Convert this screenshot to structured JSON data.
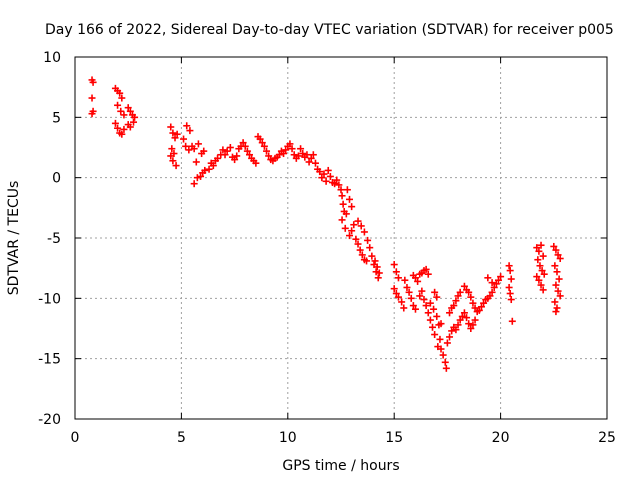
{
  "chart_data": {
    "type": "scatter",
    "title": "Day 166 of 2022, Sidereal Day-to-day VTEC variation (SDTVAR) for receiver p005",
    "xlabel": "GPS time / hours",
    "ylabel": "SDTVAR / TECUs",
    "xlim": [
      0,
      25
    ],
    "ylim": [
      -20,
      10
    ],
    "x_ticks": [
      0,
      5,
      10,
      15,
      20,
      25
    ],
    "y_ticks": [
      -20,
      -15,
      -10,
      -5,
      0,
      5,
      10
    ],
    "grid": true,
    "marker": "plus",
    "color": "#ff0000",
    "series": [
      {
        "name": "SDTVAR",
        "points": [
          [
            0.8,
            8.1
          ],
          [
            0.85,
            7.9
          ],
          [
            0.8,
            6.6
          ],
          [
            0.85,
            5.5
          ],
          [
            0.8,
            5.3
          ],
          [
            1.9,
            7.4
          ],
          [
            2.0,
            7.2
          ],
          [
            2.1,
            7.0
          ],
          [
            2.2,
            6.6
          ],
          [
            2.0,
            6.0
          ],
          [
            2.15,
            5.5
          ],
          [
            2.3,
            5.2
          ],
          [
            1.9,
            4.5
          ],
          [
            2.0,
            4.1
          ],
          [
            2.1,
            3.7
          ],
          [
            2.2,
            3.6
          ],
          [
            2.3,
            4.0
          ],
          [
            2.5,
            5.8
          ],
          [
            2.6,
            5.5
          ],
          [
            2.7,
            5.2
          ],
          [
            2.8,
            5.0
          ],
          [
            2.5,
            4.4
          ],
          [
            2.6,
            4.2
          ],
          [
            2.75,
            4.6
          ],
          [
            4.5,
            4.2
          ],
          [
            4.6,
            3.7
          ],
          [
            4.7,
            3.3
          ],
          [
            4.55,
            2.4
          ],
          [
            4.65,
            2.0
          ],
          [
            4.8,
            3.6
          ],
          [
            4.5,
            1.8
          ],
          [
            4.6,
            1.4
          ],
          [
            4.75,
            1.0
          ],
          [
            5.1,
            3.2
          ],
          [
            5.2,
            2.6
          ],
          [
            5.35,
            2.3
          ],
          [
            5.5,
            2.6
          ],
          [
            5.6,
            2.4
          ],
          [
            5.25,
            4.3
          ],
          [
            5.4,
            3.9
          ],
          [
            5.7,
            1.3
          ],
          [
            5.8,
            2.8
          ],
          [
            5.95,
            2.0
          ],
          [
            6.05,
            2.2
          ],
          [
            5.6,
            -0.5
          ],
          [
            5.75,
            0.0
          ],
          [
            5.9,
            0.1
          ],
          [
            6.0,
            0.4
          ],
          [
            6.1,
            0.6
          ],
          [
            6.3,
            0.7
          ],
          [
            6.4,
            1.2
          ],
          [
            6.5,
            1.0
          ],
          [
            6.6,
            1.4
          ],
          [
            6.7,
            1.6
          ],
          [
            6.85,
            1.9
          ],
          [
            6.95,
            2.3
          ],
          [
            7.05,
            1.9
          ],
          [
            7.15,
            2.2
          ],
          [
            7.3,
            2.5
          ],
          [
            7.4,
            1.7
          ],
          [
            7.5,
            1.5
          ],
          [
            7.6,
            1.8
          ],
          [
            7.7,
            2.4
          ],
          [
            7.8,
            2.6
          ],
          [
            7.9,
            2.9
          ],
          [
            8.0,
            2.6
          ],
          [
            8.1,
            2.2
          ],
          [
            8.2,
            1.9
          ],
          [
            8.3,
            1.6
          ],
          [
            8.4,
            1.4
          ],
          [
            8.5,
            1.2
          ],
          [
            8.6,
            3.4
          ],
          [
            8.7,
            3.2
          ],
          [
            8.8,
            2.9
          ],
          [
            8.9,
            2.6
          ],
          [
            9.0,
            2.2
          ],
          [
            9.1,
            1.8
          ],
          [
            9.2,
            1.5
          ],
          [
            9.3,
            1.4
          ],
          [
            9.4,
            1.6
          ],
          [
            9.5,
            1.7
          ],
          [
            9.6,
            1.9
          ],
          [
            9.7,
            2.2
          ],
          [
            9.8,
            2.0
          ],
          [
            9.9,
            2.3
          ],
          [
            10.0,
            2.6
          ],
          [
            10.1,
            2.8
          ],
          [
            10.2,
            2.4
          ],
          [
            10.3,
            1.9
          ],
          [
            10.4,
            1.6
          ],
          [
            10.5,
            1.8
          ],
          [
            10.6,
            2.4
          ],
          [
            10.7,
            2.0
          ],
          [
            10.8,
            1.7
          ],
          [
            10.9,
            1.9
          ],
          [
            11.0,
            1.3
          ],
          [
            11.1,
            1.6
          ],
          [
            11.2,
            1.9
          ],
          [
            11.3,
            1.2
          ],
          [
            11.4,
            0.7
          ],
          [
            11.5,
            0.5
          ],
          [
            11.6,
            0.0
          ],
          [
            11.7,
            0.3
          ],
          [
            11.8,
            -0.3
          ],
          [
            11.9,
            0.6
          ],
          [
            12.0,
            0.1
          ],
          [
            12.1,
            -0.4
          ],
          [
            12.2,
            -0.5
          ],
          [
            12.3,
            -0.2
          ],
          [
            12.4,
            -0.6
          ],
          [
            12.5,
            -1.0
          ],
          [
            12.55,
            -1.5
          ],
          [
            12.6,
            -2.2
          ],
          [
            12.65,
            -2.8
          ],
          [
            12.55,
            -3.5
          ],
          [
            12.7,
            -4.2
          ],
          [
            12.75,
            -3.0
          ],
          [
            12.8,
            -1.0
          ],
          [
            12.9,
            -1.8
          ],
          [
            13.0,
            -2.4
          ],
          [
            12.9,
            -4.8
          ],
          [
            13.0,
            -4.4
          ],
          [
            13.1,
            -3.9
          ],
          [
            13.2,
            -5.1
          ],
          [
            13.3,
            -5.5
          ],
          [
            13.4,
            -6.0
          ],
          [
            13.5,
            -6.4
          ],
          [
            13.6,
            -6.8
          ],
          [
            13.7,
            -6.9
          ],
          [
            13.3,
            -3.6
          ],
          [
            13.45,
            -4.0
          ],
          [
            13.6,
            -4.5
          ],
          [
            13.75,
            -5.2
          ],
          [
            13.85,
            -5.8
          ],
          [
            13.95,
            -6.5
          ],
          [
            14.05,
            -7.2
          ],
          [
            14.15,
            -7.8
          ],
          [
            14.25,
            -8.3
          ],
          [
            14.1,
            -6.9
          ],
          [
            14.2,
            -7.4
          ],
          [
            14.3,
            -7.9
          ],
          [
            15.0,
            -7.2
          ],
          [
            15.1,
            -7.8
          ],
          [
            15.2,
            -8.3
          ],
          [
            15.0,
            -9.2
          ],
          [
            15.1,
            -9.6
          ],
          [
            15.2,
            -9.9
          ],
          [
            15.35,
            -10.3
          ],
          [
            15.45,
            -10.8
          ],
          [
            15.5,
            -8.5
          ],
          [
            15.6,
            -9.1
          ],
          [
            15.7,
            -9.5
          ],
          [
            15.8,
            -10.0
          ],
          [
            15.9,
            -10.6
          ],
          [
            16.0,
            -10.9
          ],
          [
            15.9,
            -8.1
          ],
          [
            16.0,
            -8.3
          ],
          [
            16.1,
            -8.6
          ],
          [
            16.2,
            -8.0
          ],
          [
            16.3,
            -7.9
          ],
          [
            16.4,
            -7.7
          ],
          [
            16.5,
            -7.6
          ],
          [
            16.6,
            -8.0
          ],
          [
            16.2,
            -9.8
          ],
          [
            16.3,
            -9.4
          ],
          [
            16.4,
            -10.1
          ],
          [
            16.5,
            -10.6
          ],
          [
            16.6,
            -11.2
          ],
          [
            16.7,
            -11.8
          ],
          [
            16.8,
            -12.4
          ],
          [
            16.9,
            -13.0
          ],
          [
            16.7,
            -10.4
          ],
          [
            16.85,
            -10.9
          ],
          [
            17.0,
            -11.5
          ],
          [
            17.1,
            -12.2
          ],
          [
            17.15,
            -13.4
          ],
          [
            17.2,
            -14.2
          ],
          [
            17.3,
            -14.7
          ],
          [
            17.4,
            -15.3
          ],
          [
            17.45,
            -15.8
          ],
          [
            16.9,
            -9.5
          ],
          [
            17.0,
            -9.9
          ],
          [
            17.05,
            -14.0
          ],
          [
            17.2,
            -12.1
          ],
          [
            17.5,
            -13.7
          ],
          [
            17.6,
            -13.2
          ],
          [
            17.7,
            -12.7
          ],
          [
            17.8,
            -12.4
          ],
          [
            17.9,
            -12.6
          ],
          [
            18.0,
            -12.2
          ],
          [
            18.1,
            -11.8
          ],
          [
            17.6,
            -11.2
          ],
          [
            17.7,
            -10.8
          ],
          [
            17.8,
            -10.6
          ],
          [
            17.9,
            -10.2
          ],
          [
            18.0,
            -9.8
          ],
          [
            18.1,
            -9.5
          ],
          [
            18.2,
            -11.5
          ],
          [
            18.3,
            -11.2
          ],
          [
            18.4,
            -11.6
          ],
          [
            18.5,
            -12.1
          ],
          [
            18.6,
            -12.5
          ],
          [
            18.7,
            -12.2
          ],
          [
            18.8,
            -11.8
          ],
          [
            18.3,
            -9.0
          ],
          [
            18.4,
            -9.3
          ],
          [
            18.5,
            -9.5
          ],
          [
            18.6,
            -9.9
          ],
          [
            18.7,
            -10.4
          ],
          [
            18.8,
            -10.8
          ],
          [
            18.9,
            -11.1
          ],
          [
            19.0,
            -11.0
          ],
          [
            19.1,
            -10.7
          ],
          [
            19.2,
            -10.4
          ],
          [
            19.3,
            -10.1
          ],
          [
            19.4,
            -10.0
          ],
          [
            19.5,
            -9.8
          ],
          [
            19.6,
            -9.5
          ],
          [
            19.7,
            -9.1
          ],
          [
            19.8,
            -8.8
          ],
          [
            19.9,
            -8.5
          ],
          [
            20.0,
            -8.2
          ],
          [
            19.4,
            -8.3
          ],
          [
            19.6,
            -8.7
          ],
          [
            20.4,
            -7.3
          ],
          [
            20.45,
            -7.7
          ],
          [
            20.5,
            -8.4
          ],
          [
            20.4,
            -9.1
          ],
          [
            20.45,
            -9.6
          ],
          [
            20.5,
            -10.1
          ],
          [
            20.55,
            -11.9
          ],
          [
            21.7,
            -5.8
          ],
          [
            21.8,
            -6.1
          ],
          [
            21.9,
            -5.6
          ],
          [
            22.0,
            -6.5
          ],
          [
            21.75,
            -6.8
          ],
          [
            21.85,
            -7.3
          ],
          [
            21.95,
            -7.7
          ],
          [
            21.7,
            -8.2
          ],
          [
            21.8,
            -8.5
          ],
          [
            21.9,
            -8.9
          ],
          [
            22.0,
            -9.3
          ],
          [
            22.05,
            -8.0
          ],
          [
            22.5,
            -5.7
          ],
          [
            22.6,
            -6.0
          ],
          [
            22.7,
            -6.4
          ],
          [
            22.8,
            -6.7
          ],
          [
            22.55,
            -7.3
          ],
          [
            22.65,
            -7.8
          ],
          [
            22.75,
            -8.4
          ],
          [
            22.6,
            -8.9
          ],
          [
            22.7,
            -9.4
          ],
          [
            22.8,
            -9.8
          ],
          [
            22.55,
            -10.3
          ],
          [
            22.65,
            -10.8
          ],
          [
            22.6,
            -11.1
          ]
        ]
      }
    ]
  }
}
